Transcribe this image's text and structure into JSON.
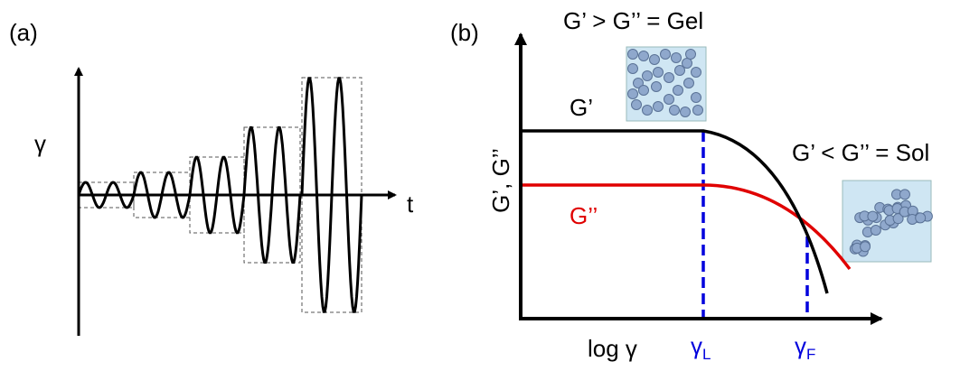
{
  "panel_a": {
    "label": "(a)",
    "y_axis_label": "γ",
    "x_axis_label": "t"
  },
  "panel_b": {
    "label": "(b)",
    "y_axis_label": "G’, G’’",
    "x_axis_label": "log γ",
    "curve_g_prime": "G’",
    "curve_g_double_prime": "G’’",
    "gel_annotation": "G’ > G’’ = Gel",
    "sol_annotation": "G’ < G’’ = Sol",
    "gamma_l": {
      "symbol": "γ",
      "subscript": "L"
    },
    "gamma_f": {
      "symbol": "γ",
      "subscript": "F"
    }
  }
}
